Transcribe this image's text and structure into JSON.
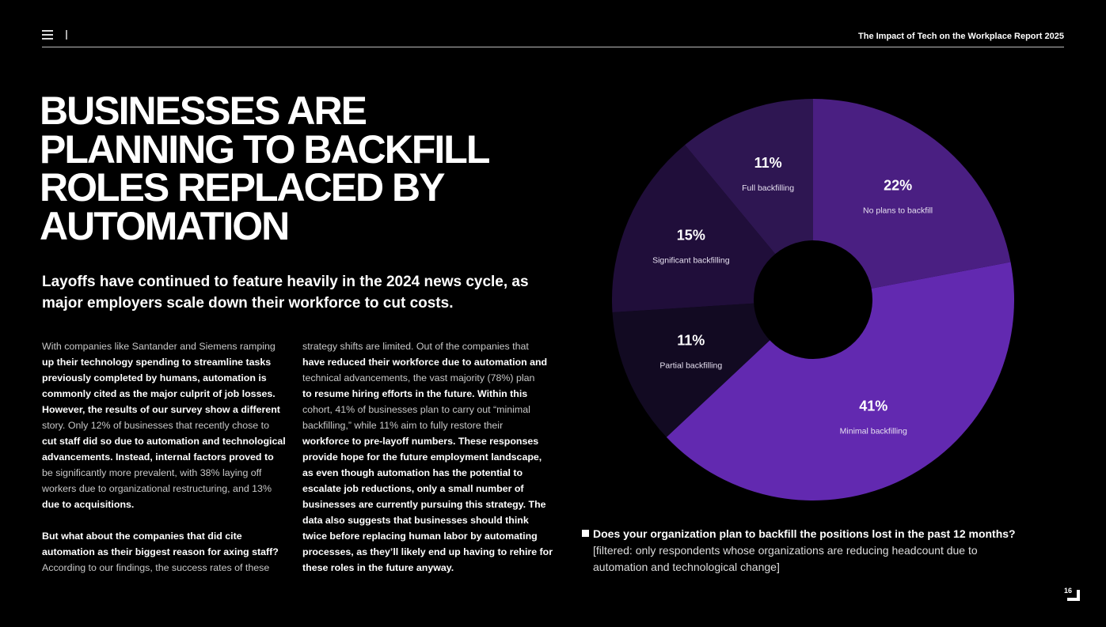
{
  "header": {
    "report_title": "The Impact of Tech on the Workplace Report 2025"
  },
  "title_lines": [
    "BUSINESSES ARE",
    "PLANNING TO BACKFILL",
    "ROLES REPLACED BY",
    "AUTOMATION"
  ],
  "subtitle": "Layoffs have continued to feature heavily in the 2024 news cycle, as major employers scale down their workforce to cut costs.",
  "body": {
    "col1": [
      {
        "t": "With companies like Santander and Siemens ramping",
        "w": false
      },
      {
        "t": "up their technology spending to streamline tasks",
        "w": true
      },
      {
        "t": "previously completed by humans, automation is",
        "w": true
      },
      {
        "t": "commonly cited as the major culprit of job losses.",
        "w": true
      },
      {
        "t": "However, the results of our survey show a different",
        "w": true
      },
      {
        "t": "story. Only 12% of businesses that recently chose to",
        "w": false
      },
      {
        "t": "cut staff did so due to automation and technological",
        "w": true
      },
      {
        "t": "advancements. Instead, internal factors proved to",
        "w": true
      },
      {
        "t": "be significantly more prevalent, with 38% laying off",
        "w": false
      },
      {
        "t": "workers due to organizational restructuring, and 13%",
        "w": false
      },
      {
        "t": "due to acquisitions.",
        "w": true
      },
      {
        "t": "",
        "w": false
      },
      {
        "t": "But what about the companies that did cite",
        "w": true
      },
      {
        "t": "automation as their biggest reason for axing staff?",
        "w": true
      },
      {
        "t": "According to our findings, the success rates of these",
        "w": false
      }
    ],
    "col2": [
      {
        "t": "strategy shifts are limited. Out of the companies that",
        "w": false
      },
      {
        "t": "have reduced their workforce due to automation and",
        "w": true
      },
      {
        "t": "technical advancements, the vast majority (78%) plan",
        "w": false
      },
      {
        "t": "to resume hiring efforts in the future. Within this",
        "w": true
      },
      {
        "t": "cohort, 41% of businesses plan to carry out “minimal",
        "w": false
      },
      {
        "t": "backfilling,” while 11% aim to fully restore their",
        "w": false
      },
      {
        "t": "workforce to pre-layoff numbers. These responses",
        "w": true
      },
      {
        "t": "provide hope for the future employment landscape,",
        "w": true
      },
      {
        "t": "as even though automation has the potential to",
        "w": true
      },
      {
        "t": "escalate job reductions, only a small number of",
        "w": true
      },
      {
        "t": "businesses are currently pursuing this strategy. The",
        "w": true
      },
      {
        "t": "data also suggests that businesses should think",
        "w": true
      },
      {
        "t": "twice before replacing human labor by automating",
        "w": true
      },
      {
        "t": "processes, as they’ll likely end up having to rehire for",
        "w": true
      },
      {
        "t": "these roles in the future anyway.",
        "w": true
      }
    ]
  },
  "chart_data": {
    "type": "pie",
    "donut": true,
    "slices": [
      {
        "label": "No plans to backfill",
        "value": 22,
        "display": "22%",
        "color": "#4a1f82"
      },
      {
        "label": "Minimal backfilling",
        "value": 41,
        "display": "41%",
        "color": "#6229b0"
      },
      {
        "label": "Partial backfilling",
        "value": 11,
        "display": "11%",
        "color": "#120a22"
      },
      {
        "label": "Significant backfilling",
        "value": 15,
        "display": "15%",
        "color": "#200e3a"
      },
      {
        "label": "Full backfilling",
        "value": 11,
        "display": "11%",
        "color": "#2e1652"
      }
    ],
    "question": "Does your organization plan to backfill the positions lost in the past 12 months?",
    "filter_note": "[filtered: only respondents whose organizations are reducing headcount due to automation and technological change]"
  },
  "page_number": "16"
}
